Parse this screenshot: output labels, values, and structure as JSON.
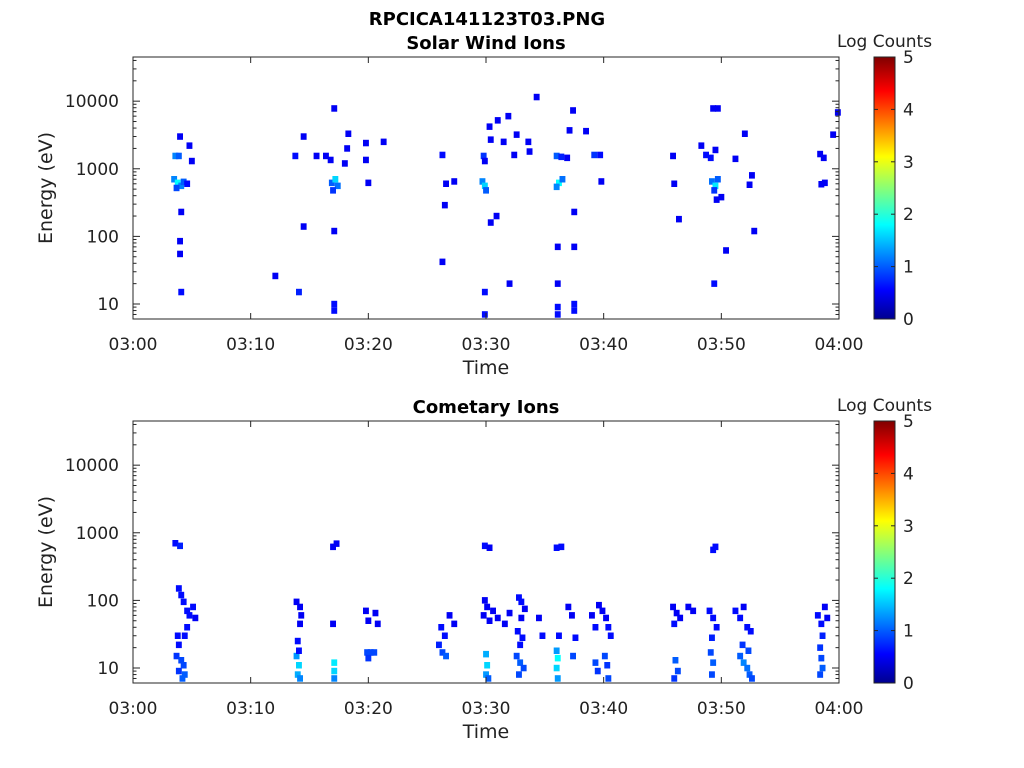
{
  "figure": {
    "title": "RPCICA141123T03.PNG"
  },
  "chart_data": [
    {
      "type": "heatmap",
      "title": "Solar Wind Ions",
      "xlabel": "Time",
      "ylabel": "Energy (eV)",
      "x_tick_labels": [
        "03:00",
        "03:10",
        "03:20",
        "03:30",
        "03:40",
        "03:50",
        "04:00"
      ],
      "x_tick_minutes": [
        0,
        10,
        20,
        30,
        40,
        50,
        60
      ],
      "xlim_minutes": [
        0,
        60
      ],
      "y_scale": "log",
      "ylim": [
        6,
        45000
      ],
      "y_ticks": [
        10,
        100,
        1000,
        10000
      ],
      "y_tick_labels": [
        "10",
        "100",
        "1000",
        "10000"
      ],
      "colorbar": {
        "label": "Log Counts",
        "range": [
          0,
          5
        ],
        "ticks": [
          0,
          1,
          2,
          3,
          4,
          5
        ],
        "colormap": "jet"
      },
      "grid": false,
      "cells": [
        [
          3.6,
          1550,
          1.2
        ],
        [
          3.9,
          1550,
          1.0
        ],
        [
          3.5,
          700,
          1.2
        ],
        [
          3.8,
          620,
          1.8
        ],
        [
          4.1,
          560,
          1.2
        ],
        [
          4.3,
          640,
          1.0
        ],
        [
          3.7,
          520,
          0.9
        ],
        [
          4.0,
          3000,
          0.5
        ],
        [
          4.8,
          2200,
          0.5
        ],
        [
          5.0,
          1300,
          0.5
        ],
        [
          4.6,
          600,
          0.6
        ],
        [
          4.1,
          230,
          0.5
        ],
        [
          4.0,
          85,
          0.5
        ],
        [
          4.0,
          55,
          0.5
        ],
        [
          4.1,
          15,
          0.6
        ],
        [
          12.1,
          26,
          0.5
        ],
        [
          13.8,
          1550,
          0.6
        ],
        [
          14.1,
          15,
          0.7
        ],
        [
          14.5,
          3000,
          0.5
        ],
        [
          14.5,
          140,
          0.5
        ],
        [
          15.6,
          1550,
          0.5
        ],
        [
          16.4,
          1550,
          0.5
        ],
        [
          16.8,
          1350,
          0.5
        ],
        [
          16.9,
          620,
          1.0
        ],
        [
          17.2,
          700,
          1.6
        ],
        [
          17.4,
          560,
          1.1
        ],
        [
          17.0,
          480,
          0.8
        ],
        [
          17.1,
          7800,
          0.5
        ],
        [
          17.1,
          120,
          0.5
        ],
        [
          17.1,
          8,
          0.6
        ],
        [
          17.1,
          10,
          0.6
        ],
        [
          18.3,
          3300,
          0.5
        ],
        [
          18.2,
          2000,
          0.5
        ],
        [
          18.0,
          1200,
          0.5
        ],
        [
          19.8,
          2400,
          0.5
        ],
        [
          21.3,
          2500,
          0.5
        ],
        [
          19.8,
          1350,
          0.5
        ],
        [
          20.0,
          620,
          0.5
        ],
        [
          26.3,
          1600,
          0.6
        ],
        [
          26.6,
          600,
          0.5
        ],
        [
          27.3,
          650,
          0.5
        ],
        [
          26.5,
          290,
          0.5
        ],
        [
          26.3,
          42,
          0.5
        ],
        [
          29.8,
          1550,
          0.8
        ],
        [
          29.7,
          650,
          1.2
        ],
        [
          29.9,
          560,
          1.6
        ],
        [
          30.0,
          480,
          1.0
        ],
        [
          29.9,
          1300,
          0.5
        ],
        [
          30.4,
          2700,
          0.5
        ],
        [
          30.3,
          4200,
          0.5
        ],
        [
          31.0,
          5200,
          0.5
        ],
        [
          31.5,
          2500,
          0.5
        ],
        [
          31.9,
          6000,
          0.5
        ],
        [
          30.4,
          160,
          0.5
        ],
        [
          30.9,
          200,
          0.5
        ],
        [
          29.9,
          15,
          0.6
        ],
        [
          29.9,
          7,
          0.6
        ],
        [
          32.4,
          1600,
          0.5
        ],
        [
          32.6,
          3200,
          0.5
        ],
        [
          33.6,
          2500,
          0.5
        ],
        [
          34.3,
          11500,
          0.5
        ],
        [
          33.7,
          1800,
          0.5
        ],
        [
          32.0,
          20,
          0.5
        ],
        [
          36.0,
          1550,
          1.0
        ],
        [
          36.4,
          1500,
          0.7
        ],
        [
          36.9,
          1450,
          0.5
        ],
        [
          36.2,
          620,
          1.8
        ],
        [
          36.0,
          540,
          1.2
        ],
        [
          36.5,
          700,
          1.1
        ],
        [
          36.1,
          70,
          0.5
        ],
        [
          36.1,
          20,
          0.5
        ],
        [
          36.1,
          9,
          0.6
        ],
        [
          36.1,
          7,
          0.6
        ],
        [
          37.4,
          7300,
          0.5
        ],
        [
          37.1,
          3700,
          0.5
        ],
        [
          37.5,
          230,
          0.5
        ],
        [
          37.5,
          70,
          0.5
        ],
        [
          37.5,
          10,
          0.6
        ],
        [
          37.5,
          8,
          0.6
        ],
        [
          39.2,
          1600,
          0.8
        ],
        [
          39.7,
          1600,
          0.6
        ],
        [
          39.8,
          650,
          0.5
        ],
        [
          38.5,
          3600,
          0.5
        ],
        [
          45.9,
          1550,
          0.5
        ],
        [
          46.0,
          600,
          0.5
        ],
        [
          46.4,
          180,
          0.5
        ],
        [
          48.3,
          2200,
          0.5
        ],
        [
          48.7,
          1600,
          0.6
        ],
        [
          49.1,
          1450,
          0.6
        ],
        [
          49.2,
          650,
          1.1
        ],
        [
          49.5,
          560,
          1.7
        ],
        [
          49.7,
          700,
          1.0
        ],
        [
          49.4,
          480,
          0.8
        ],
        [
          49.3,
          7800,
          0.5
        ],
        [
          49.7,
          7800,
          0.5
        ],
        [
          49.5,
          1900,
          0.5
        ],
        [
          49.6,
          350,
          0.5
        ],
        [
          50.0,
          380,
          0.5
        ],
        [
          50.4,
          62,
          0.5
        ],
        [
          49.4,
          20,
          0.6
        ],
        [
          51.2,
          1400,
          0.5
        ],
        [
          52.0,
          3300,
          0.5
        ],
        [
          52.6,
          800,
          0.5
        ],
        [
          52.4,
          580,
          0.5
        ],
        [
          52.8,
          120,
          0.5
        ],
        [
          58.4,
          1650,
          0.5
        ],
        [
          58.7,
          1450,
          0.5
        ],
        [
          58.5,
          590,
          0.5
        ],
        [
          58.8,
          620,
          0.5
        ],
        [
          59.5,
          3200,
          0.5
        ],
        [
          59.9,
          6800,
          0.5
        ]
      ]
    },
    {
      "type": "heatmap",
      "title": "Cometary Ions",
      "xlabel": "Time",
      "ylabel": "Energy (eV)",
      "x_tick_labels": [
        "03:00",
        "03:10",
        "03:20",
        "03:30",
        "03:40",
        "03:50",
        "04:00"
      ],
      "x_tick_minutes": [
        0,
        10,
        20,
        30,
        40,
        50,
        60
      ],
      "xlim_minutes": [
        0,
        60
      ],
      "y_scale": "log",
      "ylim": [
        6,
        45000
      ],
      "y_ticks": [
        10,
        100,
        1000,
        10000
      ],
      "y_tick_labels": [
        "10",
        "100",
        "1000",
        "10000"
      ],
      "colorbar": {
        "label": "Log Counts",
        "range": [
          0,
          5
        ],
        "ticks": [
          0,
          1,
          2,
          3,
          4,
          5
        ],
        "colormap": "jet"
      },
      "grid": false,
      "cells": [
        [
          3.6,
          700,
          0.6
        ],
        [
          4.0,
          640,
          0.7
        ],
        [
          3.9,
          150,
          0.6
        ],
        [
          4.1,
          120,
          0.6
        ],
        [
          4.3,
          95,
          0.6
        ],
        [
          4.6,
          70,
          0.6
        ],
        [
          4.8,
          60,
          0.6
        ],
        [
          5.1,
          80,
          0.6
        ],
        [
          5.3,
          55,
          0.5
        ],
        [
          4.6,
          40,
          0.6
        ],
        [
          4.4,
          30,
          0.6
        ],
        [
          3.8,
          30,
          0.6
        ],
        [
          3.9,
          22,
          0.6
        ],
        [
          3.7,
          15,
          0.8
        ],
        [
          4.1,
          13,
          0.9
        ],
        [
          4.3,
          11,
          0.9
        ],
        [
          4.4,
          8,
          1.0
        ],
        [
          4.2,
          7,
          1.0
        ],
        [
          3.9,
          9,
          0.8
        ],
        [
          13.9,
          95,
          0.5
        ],
        [
          14.2,
          80,
          0.5
        ],
        [
          14.3,
          60,
          0.5
        ],
        [
          14.2,
          45,
          0.5
        ],
        [
          14.0,
          25,
          0.6
        ],
        [
          13.9,
          15,
          1.3
        ],
        [
          14.1,
          11,
          1.6
        ],
        [
          14.0,
          8,
          1.4
        ],
        [
          14.2,
          7,
          1.2
        ],
        [
          14.1,
          18,
          0.6
        ],
        [
          17.0,
          45,
          0.5
        ],
        [
          17.1,
          12,
          1.7
        ],
        [
          17.1,
          9,
          1.6
        ],
        [
          17.1,
          7,
          1.2
        ],
        [
          17.0,
          620,
          0.5
        ],
        [
          17.3,
          690,
          0.5
        ],
        [
          19.8,
          70,
          0.5
        ],
        [
          20.0,
          50,
          0.5
        ],
        [
          20.6,
          65,
          0.5
        ],
        [
          20.8,
          45,
          0.5
        ],
        [
          19.9,
          17,
          0.9
        ],
        [
          20.2,
          17,
          0.9
        ],
        [
          20.5,
          17,
          0.9
        ],
        [
          20.0,
          14,
          0.8
        ],
        [
          26.2,
          40,
          0.6
        ],
        [
          26.5,
          30,
          0.6
        ],
        [
          26.9,
          60,
          0.5
        ],
        [
          27.3,
          45,
          0.5
        ],
        [
          26.0,
          22,
          0.7
        ],
        [
          26.3,
          17,
          0.9
        ],
        [
          26.6,
          15,
          1.0
        ],
        [
          29.9,
          640,
          0.6
        ],
        [
          30.3,
          600,
          0.5
        ],
        [
          29.9,
          100,
          0.5
        ],
        [
          30.1,
          80,
          0.5
        ],
        [
          29.8,
          60,
          0.5
        ],
        [
          30.3,
          50,
          0.5
        ],
        [
          30.6,
          70,
          0.5
        ],
        [
          31.0,
          55,
          0.5
        ],
        [
          30.0,
          16,
          1.4
        ],
        [
          30.1,
          11,
          1.6
        ],
        [
          30.0,
          8,
          1.3
        ],
        [
          30.2,
          7,
          1.0
        ],
        [
          31.6,
          45,
          0.5
        ],
        [
          32.0,
          65,
          0.5
        ],
        [
          32.8,
          110,
          0.6
        ],
        [
          33.0,
          95,
          0.6
        ],
        [
          33.3,
          75,
          0.5
        ],
        [
          33.0,
          55,
          0.5
        ],
        [
          32.7,
          35,
          0.6
        ],
        [
          33.1,
          28,
          0.6
        ],
        [
          32.9,
          22,
          0.6
        ],
        [
          32.6,
          15,
          0.9
        ],
        [
          32.9,
          12,
          1.0
        ],
        [
          33.2,
          10,
          0.9
        ],
        [
          32.8,
          8,
          0.9
        ],
        [
          34.5,
          55,
          0.5
        ],
        [
          34.8,
          30,
          0.6
        ],
        [
          36.0,
          600,
          0.6
        ],
        [
          36.4,
          620,
          0.6
        ],
        [
          36.2,
          30,
          0.6
        ],
        [
          36.0,
          18,
          1.3
        ],
        [
          36.1,
          14,
          1.8
        ],
        [
          36.0,
          10,
          1.6
        ],
        [
          36.1,
          7,
          1.3
        ],
        [
          37.0,
          80,
          0.5
        ],
        [
          37.3,
          60,
          0.5
        ],
        [
          37.6,
          28,
          0.6
        ],
        [
          37.4,
          15,
          0.9
        ],
        [
          39.0,
          60,
          0.5
        ],
        [
          39.3,
          40,
          0.6
        ],
        [
          39.6,
          85,
          0.5
        ],
        [
          39.9,
          70,
          0.5
        ],
        [
          40.2,
          55,
          0.5
        ],
        [
          40.4,
          40,
          0.6
        ],
        [
          40.6,
          30,
          0.6
        ],
        [
          39.3,
          12,
          0.9
        ],
        [
          39.5,
          9,
          0.8
        ],
        [
          40.1,
          15,
          0.9
        ],
        [
          40.3,
          11,
          0.8
        ],
        [
          40.4,
          7,
          0.9
        ],
        [
          45.9,
          80,
          0.5
        ],
        [
          46.2,
          65,
          0.5
        ],
        [
          46.5,
          55,
          0.5
        ],
        [
          47.2,
          80,
          0.5
        ],
        [
          47.6,
          70,
          0.5
        ],
        [
          46.0,
          45,
          0.6
        ],
        [
          46.1,
          13,
          1.0
        ],
        [
          46.3,
          9,
          0.9
        ],
        [
          46.0,
          7,
          0.8
        ],
        [
          49.0,
          70,
          0.6
        ],
        [
          49.3,
          55,
          0.6
        ],
        [
          49.6,
          40,
          0.6
        ],
        [
          49.2,
          28,
          0.7
        ],
        [
          49.1,
          17,
          0.9
        ],
        [
          49.3,
          12,
          1.0
        ],
        [
          49.2,
          8,
          0.9
        ],
        [
          49.5,
          620,
          0.6
        ],
        [
          49.3,
          560,
          0.6
        ],
        [
          51.2,
          70,
          0.6
        ],
        [
          51.6,
          55,
          0.6
        ],
        [
          51.9,
          80,
          0.5
        ],
        [
          52.2,
          40,
          0.6
        ],
        [
          52.5,
          35,
          0.6
        ],
        [
          51.8,
          22,
          0.8
        ],
        [
          51.6,
          15,
          1.0
        ],
        [
          51.9,
          12,
          1.2
        ],
        [
          52.2,
          10,
          1.1
        ],
        [
          52.4,
          8,
          1.0
        ],
        [
          52.6,
          7,
          0.9
        ],
        [
          52.3,
          18,
          0.9
        ],
        [
          58.2,
          60,
          0.6
        ],
        [
          58.5,
          45,
          0.6
        ],
        [
          58.8,
          80,
          0.5
        ],
        [
          59.0,
          55,
          0.5
        ],
        [
          58.6,
          30,
          0.7
        ],
        [
          58.4,
          20,
          0.8
        ],
        [
          58.5,
          14,
          0.9
        ],
        [
          58.6,
          10,
          1.0
        ],
        [
          58.4,
          8,
          0.9
        ]
      ]
    }
  ]
}
